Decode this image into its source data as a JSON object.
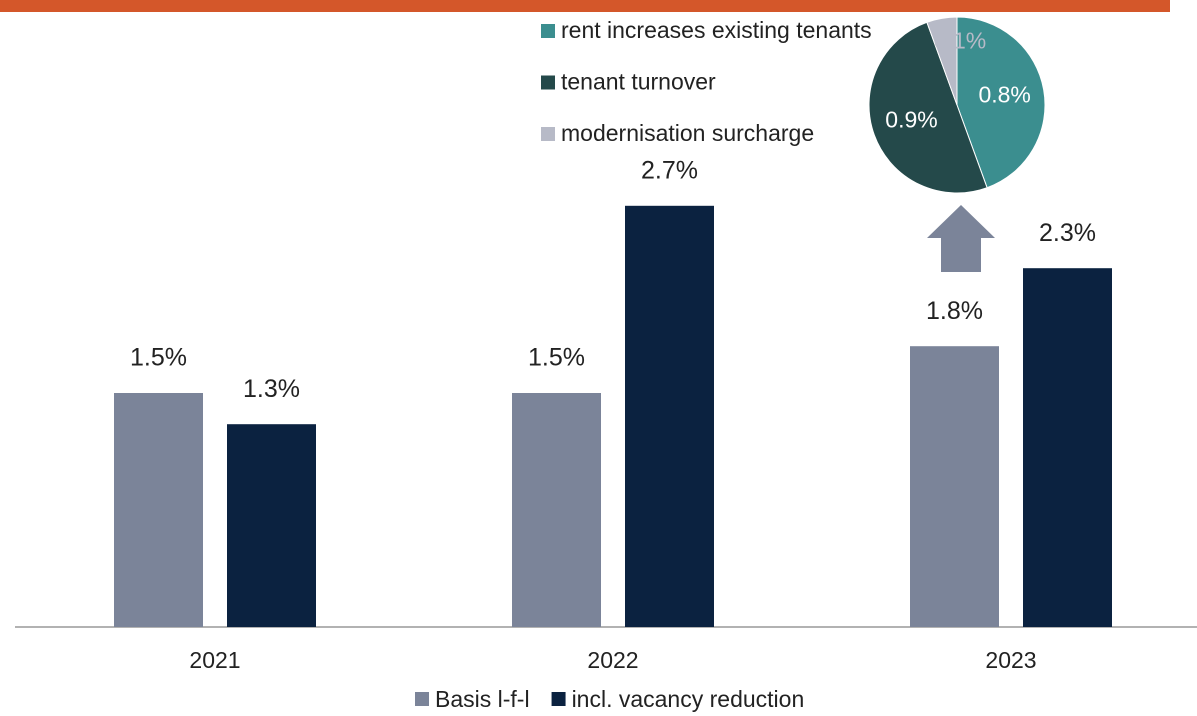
{
  "chart_data": [
    {
      "type": "bar",
      "categories": [
        "2021",
        "2022",
        "2023"
      ],
      "series": [
        {
          "name": "Basis l-f-l",
          "color": "#7b8499",
          "values": [
            1.5,
            1.5,
            1.8
          ],
          "value_labels": [
            "1.5%",
            "1.5%",
            "1.8%"
          ]
        },
        {
          "name": "incl. vacancy reduction",
          "color": "#0b2240",
          "values": [
            1.3,
            2.7,
            2.3
          ],
          "value_labels": [
            "1.3%",
            "2.7%",
            "2.3%"
          ]
        }
      ],
      "ylim": [
        0,
        4
      ]
    },
    {
      "type": "pie",
      "labels": [
        "rent increases existing tenants",
        "tenant turnover",
        "modernisation surcharge"
      ],
      "values": [
        0.8,
        0.9,
        0.1
      ],
      "value_labels": [
        "0.8%",
        "0.9%",
        "0.1%"
      ],
      "colors": [
        "#3b8e8f",
        "#24494a",
        "#b7bac7"
      ]
    }
  ]
}
